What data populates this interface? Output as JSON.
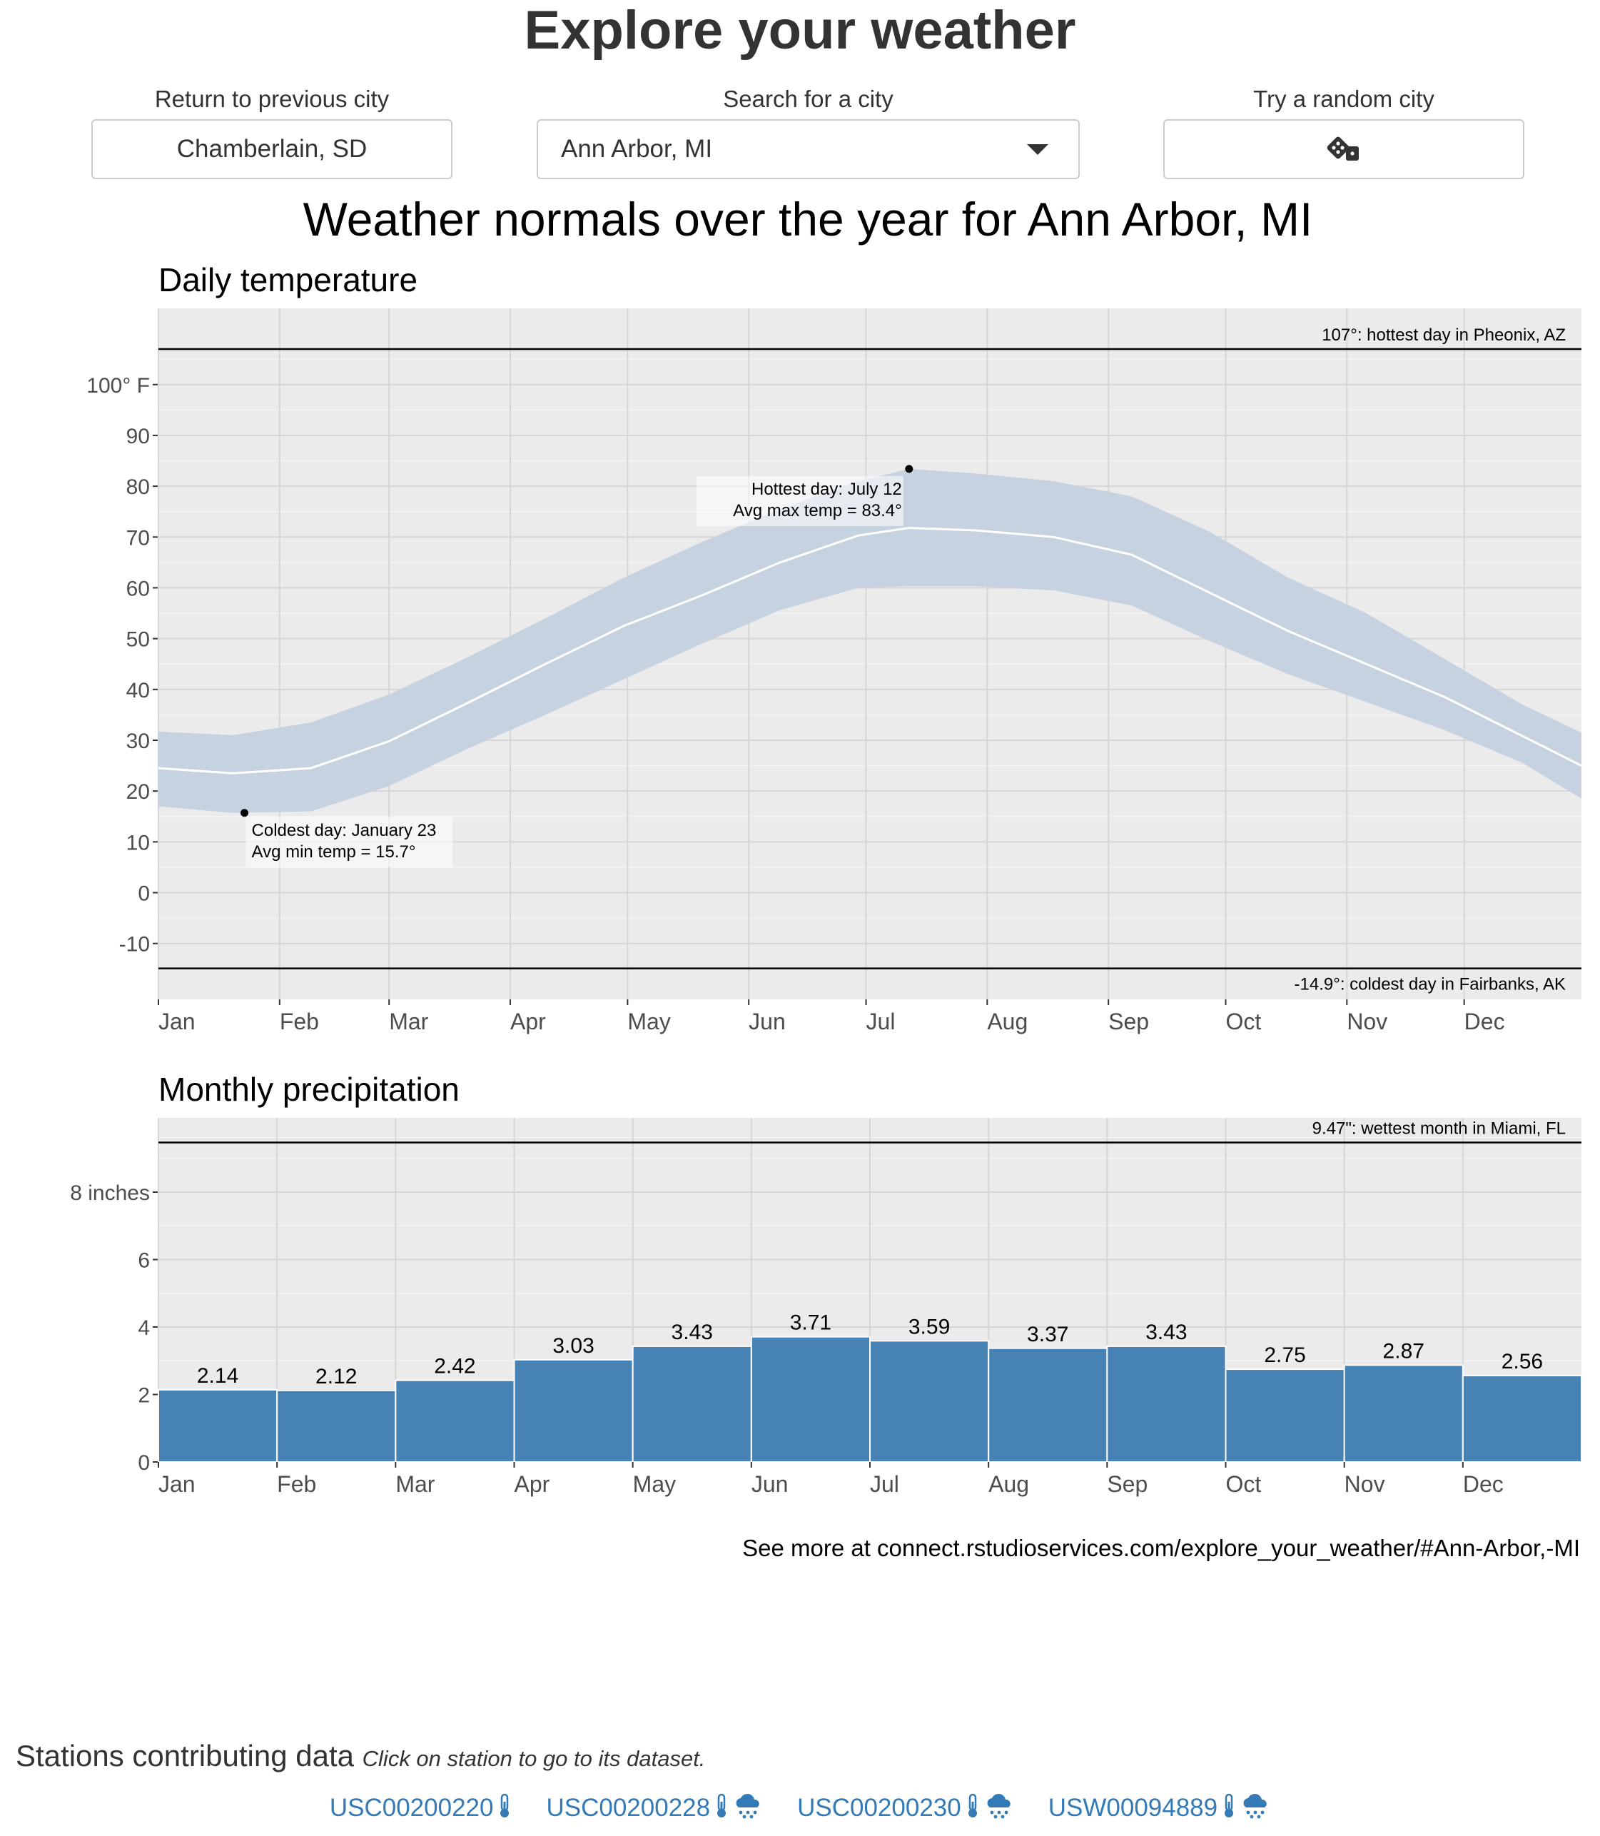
{
  "app_title": "Explore your weather",
  "controls": {
    "previous": {
      "label": "Return to previous city",
      "value": "Chamberlain, SD"
    },
    "search": {
      "label": "Search for a city",
      "value": "Ann Arbor, MI"
    },
    "random": {
      "label": "Try a random city",
      "icon": "dice-icon"
    }
  },
  "plot_title": "Weather normals over the year for Ann Arbor, MI",
  "chart_data": [
    {
      "type": "area",
      "title": "Daily temperature",
      "x_tick_labels": [
        "Jan",
        "Feb",
        "Mar",
        "Apr",
        "May",
        "Jun",
        "Jul",
        "Aug",
        "Sep",
        "Oct",
        "Nov",
        "Dec"
      ],
      "y_tick_labels": [
        "100° F",
        "90",
        "80",
        "70",
        "60",
        "50",
        "40",
        "30",
        "20",
        "10",
        "0",
        "-10"
      ],
      "y_ticks": [
        100,
        90,
        80,
        70,
        60,
        50,
        40,
        30,
        20,
        10,
        0,
        -10
      ],
      "ylim": [
        -21,
        115
      ],
      "series": [
        {
          "kind": "band",
          "color": "#c5d1e0",
          "days": [
            1,
            20,
            40,
            60,
            80,
            100,
            120,
            140,
            160,
            180,
            193,
            210,
            230,
            250,
            270,
            290,
            310,
            330,
            350,
            365
          ],
          "max": [
            31.7,
            31,
            33.5,
            39,
            46.3,
            54,
            62,
            69,
            75.5,
            81,
            83.4,
            82.5,
            81,
            78,
            71,
            62,
            55,
            46,
            37,
            31.5
          ],
          "min": [
            17,
            15.7,
            16,
            21,
            28.3,
            35,
            42,
            49,
            55.6,
            60,
            60.3,
            60.3,
            59.5,
            56.5,
            49.5,
            43,
            37.5,
            32,
            25.5,
            18.5
          ]
        },
        {
          "kind": "line",
          "color": "#ffffff",
          "days": [
            1,
            20,
            40,
            60,
            80,
            100,
            120,
            140,
            160,
            180,
            193,
            210,
            230,
            250,
            270,
            290,
            310,
            330,
            350,
            365
          ],
          "avg": [
            24.5,
            23.5,
            24.5,
            29.8,
            37.3,
            45,
            52.5,
            58.5,
            65,
            70.3,
            71.8,
            71.3,
            70,
            66.5,
            59,
            51.5,
            45,
            38.5,
            30.8,
            25
          ]
        }
      ],
      "reference_lines": [
        {
          "value": 107,
          "label": "107°: hottest day in Pheonix, AZ"
        },
        {
          "value": -14.9,
          "label": "-14.9°: coldest day in Fairbanks, AK"
        }
      ],
      "annotations": [
        {
          "day": 23,
          "value": 15.7,
          "lines": [
            "Coldest day: January 23",
            "Avg min temp = 15.7°"
          ]
        },
        {
          "day": 193,
          "value": 83.4,
          "lines": [
            "Hottest day: July 12",
            "Avg max temp = 83.4°"
          ]
        }
      ],
      "grid": true
    },
    {
      "type": "bar",
      "title": "Monthly precipitation",
      "categories": [
        "Jan",
        "Feb",
        "Mar",
        "Apr",
        "May",
        "Jun",
        "Jul",
        "Aug",
        "Sep",
        "Oct",
        "Nov",
        "Dec"
      ],
      "values": [
        2.14,
        2.12,
        2.42,
        3.03,
        3.43,
        3.71,
        3.59,
        3.37,
        3.43,
        2.75,
        2.87,
        2.56
      ],
      "value_labels": [
        "2.14",
        "2.12",
        "2.42",
        "3.03",
        "3.43",
        "3.71",
        "3.59",
        "3.37",
        "3.43",
        "2.75",
        "2.87",
        "2.56"
      ],
      "y_tick_labels": [
        "8 inches",
        "6",
        "4",
        "2",
        "0"
      ],
      "y_ticks": [
        8,
        6,
        4,
        2,
        0
      ],
      "ylim": [
        0,
        10.2
      ],
      "bar_color": "#4682b4",
      "reference_lines": [
        {
          "value": 9.47,
          "label": "9.47\": wettest month in Miami, FL"
        }
      ],
      "grid": true
    }
  ],
  "see_more": "See more at connect.rstudioservices.com/explore_your_weather/#Ann-Arbor,-MI",
  "stations": {
    "heading": "Stations contributing data",
    "hint": "Click on station to go to its dataset.",
    "items": [
      {
        "id": "USC00200220",
        "icons": [
          "thermometer-icon"
        ]
      },
      {
        "id": "USC00200228",
        "icons": [
          "thermometer-icon",
          "rain-cloud-icon"
        ]
      },
      {
        "id": "USC00200230",
        "icons": [
          "thermometer-icon",
          "rain-cloud-icon"
        ]
      },
      {
        "id": "USW00094889",
        "icons": [
          "thermometer-icon",
          "rain-cloud-icon"
        ]
      }
    ]
  }
}
